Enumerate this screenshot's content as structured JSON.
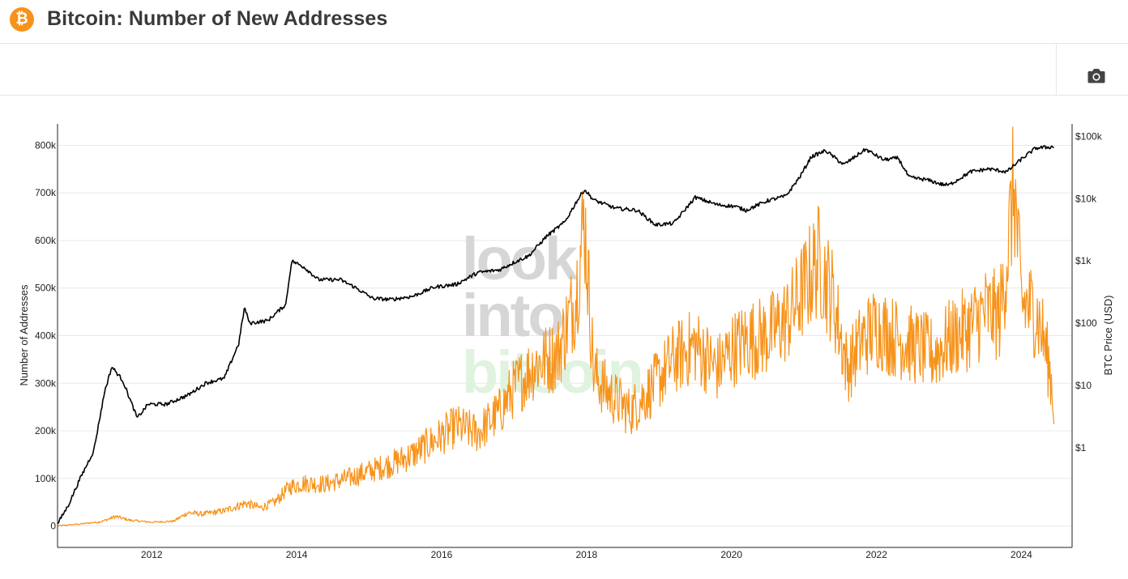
{
  "header": {
    "logo_symbol": "₿",
    "title": "Bitcoin: Number of New Addresses"
  },
  "toolbar": {
    "camera_icon": "camera-icon"
  },
  "colors": {
    "addresses": "#f7931a",
    "price": "#000000",
    "grid": "#e8e8e8",
    "watermark_grey": "#d6d6d6",
    "watermark_green": "#dff3df"
  },
  "watermark": [
    "look",
    "into",
    "bitcoin"
  ],
  "chart_data": {
    "type": "line",
    "title": "Bitcoin: Number of New Addresses",
    "xlabel": "",
    "ylabel": "Number of Addresses",
    "y2label": "BTC Price (USD)",
    "xlim": [
      2010.7,
      2024.7
    ],
    "ylim": [
      -45000,
      845000
    ],
    "y2scale": "log",
    "y2lim_log10": [
      -1.6,
      5.2
    ],
    "x_ticks": [
      "2012",
      "2014",
      "2016",
      "2018",
      "2020",
      "2022",
      "2024"
    ],
    "y_ticks": [
      "0",
      "100k",
      "200k",
      "300k",
      "400k",
      "500k",
      "600k",
      "700k",
      "800k"
    ],
    "y2_ticks": [
      "$1",
      "$10",
      "$100",
      "$1k",
      "$10k",
      "$100k"
    ],
    "y2_tick_values": [
      1,
      10,
      100,
      1000,
      10000,
      100000
    ],
    "series": [
      {
        "name": "Number of New Addresses",
        "axis": "left",
        "color": "#f7931a",
        "x": [
          2010.7,
          2011.0,
          2011.3,
          2011.5,
          2011.7,
          2012.0,
          2012.3,
          2012.5,
          2012.7,
          2013.0,
          2013.3,
          2013.5,
          2013.7,
          2013.9,
          2014.1,
          2014.4,
          2014.7,
          2015.0,
          2015.3,
          2015.6,
          2015.9,
          2016.2,
          2016.5,
          2016.8,
          2017.0,
          2017.3,
          2017.6,
          2017.85,
          2017.97,
          2018.1,
          2018.3,
          2018.6,
          2018.9,
          2019.2,
          2019.5,
          2019.8,
          2020.0,
          2020.2,
          2020.5,
          2020.8,
          2021.0,
          2021.2,
          2021.4,
          2021.6,
          2021.8,
          2022.0,
          2022.2,
          2022.5,
          2022.8,
          2023.0,
          2023.3,
          2023.5,
          2023.7,
          2023.8,
          2023.9,
          2024.0,
          2024.2,
          2024.3,
          2024.4,
          2024.45
        ],
        "y": [
          0,
          4000,
          9000,
          20000,
          12000,
          8000,
          10000,
          28000,
          25000,
          32000,
          48000,
          38000,
          50000,
          82000,
          90000,
          88000,
          100000,
          115000,
          130000,
          150000,
          180000,
          210000,
          195000,
          240000,
          290000,
          340000,
          360000,
          480000,
          650000,
          320000,
          280000,
          240000,
          290000,
          350000,
          380000,
          330000,
          370000,
          390000,
          400000,
          440000,
          500000,
          560000,
          480000,
          330000,
          390000,
          420000,
          400000,
          380000,
          360000,
          390000,
          420000,
          450000,
          440000,
          560000,
          720000,
          470000,
          450000,
          400000,
          320000,
          250000
        ]
      },
      {
        "name": "BTC Price (USD)",
        "axis": "right",
        "color": "#000000",
        "x": [
          2010.7,
          2010.85,
          2011.0,
          2011.2,
          2011.35,
          2011.45,
          2011.6,
          2011.8,
          2011.95,
          2012.2,
          2012.5,
          2012.75,
          2013.0,
          2013.2,
          2013.28,
          2013.35,
          2013.6,
          2013.85,
          2013.93,
          2014.1,
          2014.3,
          2014.6,
          2014.8,
          2015.05,
          2015.3,
          2015.6,
          2015.9,
          2016.2,
          2016.5,
          2016.8,
          2017.0,
          2017.2,
          2017.45,
          2017.7,
          2017.85,
          2017.97,
          2018.1,
          2018.4,
          2018.7,
          2018.95,
          2019.2,
          2019.5,
          2019.8,
          2020.05,
          2020.2,
          2020.5,
          2020.75,
          2020.95,
          2021.1,
          2021.3,
          2021.55,
          2021.85,
          2022.1,
          2022.3,
          2022.45,
          2022.7,
          2022.9,
          2023.0,
          2023.3,
          2023.55,
          2023.8,
          2024.0,
          2024.2,
          2024.45
        ],
        "y": [
          0.06,
          0.12,
          0.3,
          0.9,
          8,
          20,
          12,
          3,
          5,
          5,
          7,
          11,
          13,
          47,
          180,
          100,
          110,
          200,
          1000,
          800,
          500,
          500,
          380,
          250,
          240,
          270,
          380,
          420,
          650,
          720,
          950,
          1200,
          2500,
          4200,
          8500,
          14000,
          9500,
          7000,
          6500,
          3800,
          4000,
          10500,
          8000,
          7500,
          6500,
          9300,
          11000,
          23000,
          47000,
          59000,
          35000,
          62000,
          42000,
          45000,
          22000,
          20000,
          17000,
          16500,
          27000,
          30000,
          27000,
          43000,
          65000,
          68000
        ]
      }
    ]
  }
}
